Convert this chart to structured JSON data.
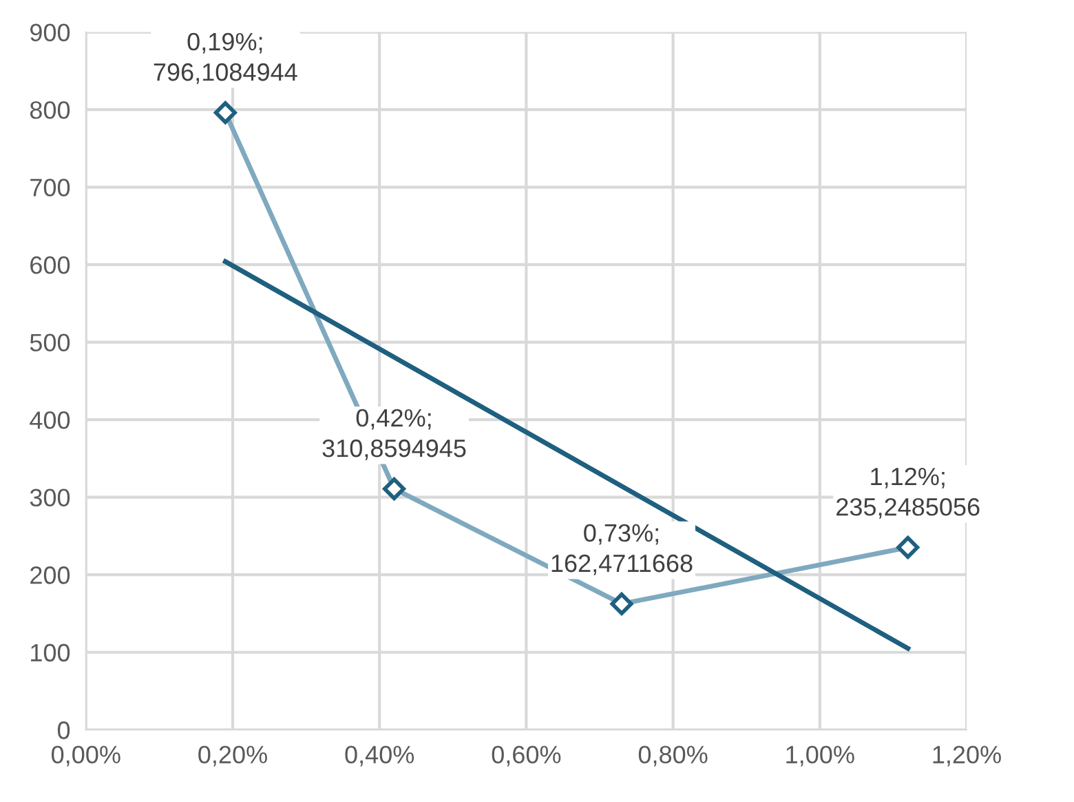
{
  "chart_data": {
    "type": "line",
    "xlim": [
      0,
      1.2
    ],
    "xticks": [
      {
        "value": 0,
        "label": "0,00%"
      },
      {
        "value": 0.2,
        "label": "0,20%"
      },
      {
        "value": 0.4,
        "label": "0,40%"
      },
      {
        "value": 0.6,
        "label": "0,60%"
      },
      {
        "value": 0.8,
        "label": "0,80%"
      },
      {
        "value": 1.0,
        "label": "1,00%"
      },
      {
        "value": 1.2,
        "label": "1,20%"
      }
    ],
    "ylim": [
      0,
      900
    ],
    "yticks": [
      0,
      100,
      200,
      300,
      400,
      500,
      600,
      700,
      800,
      900
    ],
    "grid": true,
    "series": [
      {
        "marker": "diamond",
        "color": "#7fa9bf",
        "x": [
          0.19,
          0.42,
          0.73,
          1.12
        ],
        "values": [
          796.1084944,
          310.8594945,
          162.4711668,
          235.2485056
        ]
      },
      {
        "marker": "none",
        "color": "#1f5f7f",
        "x": [
          0.19,
          1.12
        ],
        "values": [
          604,
          105
        ]
      }
    ],
    "annotations": [
      {
        "text": "0,19%;\n796,1084944",
        "x": 0.19,
        "y": 796.1084944
      },
      {
        "text": "0,42%;\n310,8594945",
        "x": 0.42,
        "y": 310.8594945
      },
      {
        "text": "0,73%;\n162,4711668",
        "x": 0.73,
        "y": 162.4711668
      },
      {
        "text": "1,12%;\n235,2485056",
        "x": 1.12,
        "y": 235.2485056
      }
    ]
  }
}
